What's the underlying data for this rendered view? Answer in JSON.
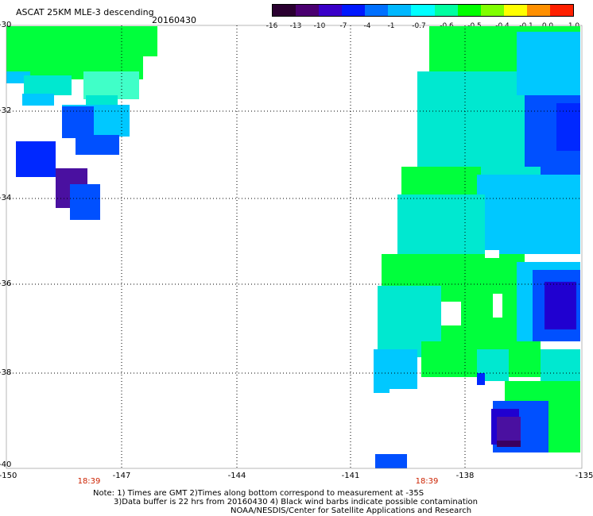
{
  "title": "ASCAT 25KM MLE-3 descending",
  "date": "20160430",
  "colorbar": {
    "labels": [
      "-16",
      "-13",
      "-10",
      "-7",
      "-4",
      "-1",
      "-0.7",
      "-0.6",
      "-0.5",
      "-0.4",
      "-0.1",
      "0.0",
      "1.0"
    ],
    "colors": [
      "#2a0030",
      "#4a0070",
      "#3a00c8",
      "#0018ff",
      "#0070ff",
      "#00b8ff",
      "#00ffff",
      "#00ffa0",
      "#00ff00",
      "#80ff00",
      "#ffff00",
      "#ff9000",
      "#ff2000"
    ]
  },
  "axes": {
    "y_ticks": [
      "-30",
      "-32",
      "-34",
      "-36",
      "-38",
      "-40"
    ],
    "x_ticks": [
      "-150",
      "-147",
      "-144",
      "-141",
      "-138",
      "-135"
    ]
  },
  "times": [
    "18:39",
    "18:39"
  ],
  "notes": {
    "line1": "Note: 1) Times are GMT 2)Times along bottom correspond to measurement at -35S",
    "line2": "3)Data buffer is 22 hrs from 20160430 4) Black wind barbs indicate possible contamination",
    "line3": "NOAA/NESDIS/Center for Satellite Applications and Research"
  }
}
